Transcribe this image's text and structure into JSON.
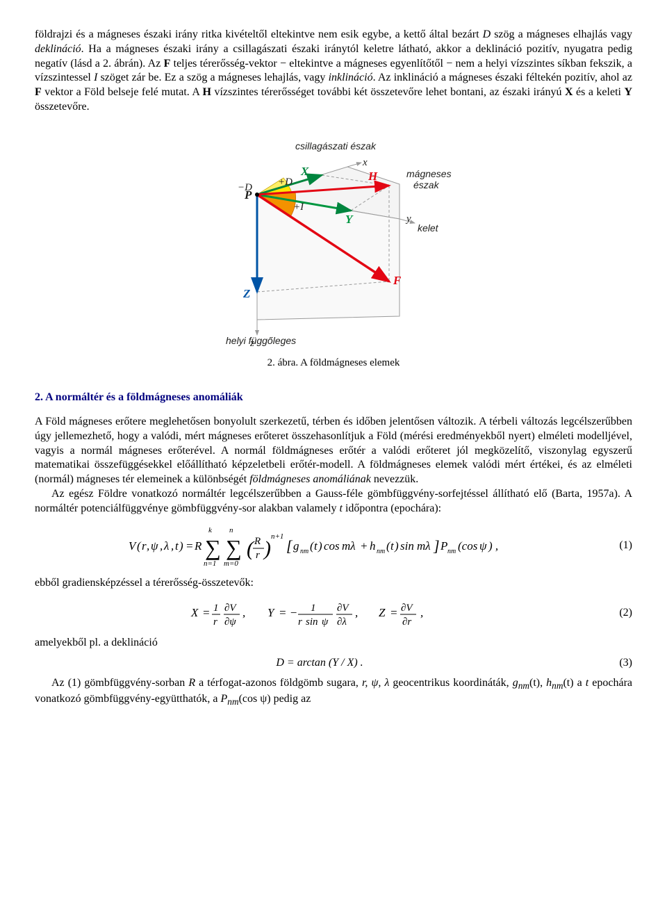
{
  "intro": {
    "p1_a": "földrajzi és a mágneses északi irány ritka kivételtől eltekintve nem esik egybe, a kettő által bezárt ",
    "p1_D": "D",
    "p1_b": " szög a mágneses elhajlás vagy ",
    "p1_decl": "deklináció",
    "p1_c": ". Ha a mágneses északi irány a csillagászati északi iránytól keletre látható, akkor a deklináció pozitív, nyugatra pedig negatív (lásd a 2. ábrán). Az ",
    "p1_F": "F",
    "p1_d": " teljes térerősség-vektor − eltekintve a mágneses egyenlítőtől − nem a helyi vízszintes síkban fekszik, a vízszintessel ",
    "p1_I": "I",
    "p1_e": " szöget zár be. Ez a szög a mágneses lehajlás, vagy ",
    "p1_incl": "inklináció",
    "p1_f": ". Az inklináció a mágneses északi féltekén pozitív, ahol az ",
    "p1_F2": "F",
    "p1_g": " vektor a Föld belseje felé mutat. A ",
    "p1_H": "H",
    "p1_h": " vízszintes térerősséget további két összetevőre lehet bontani, az északi irányú ",
    "p1_X": "X",
    "p1_i": " és a keleti ",
    "p1_Y": "Y",
    "p1_j": " összetevőre."
  },
  "figure": {
    "caption": "2. ábra. A földmágneses elemek",
    "labels": {
      "csillag": "csillagászati észak",
      "magneses_eszak1": "mágneses",
      "magneses_eszak2": "észak",
      "kelet": "kelet",
      "helyi": "helyi függőleges",
      "x": "x",
      "y": "y",
      "z": "z",
      "P": "P",
      "X": "X",
      "Y": "Y",
      "Z": "Z",
      "H": "H",
      "F": "F",
      "negD": "−D",
      "posD": "+D",
      "posI": "+I"
    },
    "colors": {
      "cube_edge": "#9a9a9a",
      "cube_fill": "#efefef",
      "X": "#00853e",
      "Y": "#009640",
      "Z": "#0054a6",
      "H": "#e30613",
      "F": "#e30613",
      "angleD_fill": "#ffe600",
      "angleI_fill": "#f39200",
      "text": "#1d1d1b"
    }
  },
  "section2": {
    "title": "2. A normáltér és a földmágneses anomáliák",
    "p1_a": "A Föld mágneses erőtere meglehetősen bonyolult szerkezetű, térben és időben jelentősen változik. A térbeli változás legcélszerűbben úgy jellemezhető, hogy a valódi, mért mágneses erőteret összehasonlítjuk a Föld (mérési eredményekből nyert) elméleti modelljével, vagyis a normál mágneses erőterével. A normál földmágneses erőtér a valódi erőteret jól megközelítő, viszonylag egyszerű matematikai összefüggésekkel előállítható képzeletbeli erőtér-modell. A földmágneses elemek valódi mért értékei, és az elméleti (normál) mágneses tér elemeinek a különbségét ",
    "p1_anom": "földmágneses anomáliának",
    "p1_b": " nevezzük.",
    "p2_a": "Az egész Földre vonatkozó normáltér legcélszerűbben a Gauss-féle gömbfüggvény-sorfejtéssel állítható elő (Barta, 1957a). A normáltér potenciálfüggvénye gömbfüggvény-sor alakban valamely ",
    "p2_t": "t",
    "p2_b": " időpontra (epochára):",
    "p3": "ebből gradiensképzéssel a térerősség-összetevők:",
    "p4": "amelyekből pl. a deklináció",
    "p5_a": "Az (1) gömbfüggvény-sorban ",
    "p5_R": "R",
    "p5_b": " a térfogat-azonos földgömb sugara, ",
    "p5_coords": "r, ψ, λ",
    "p5_c": " geocentrikus koordináták, ",
    "p5_gnm": "g",
    "p5_nm1": "nm",
    "p5_t1": "(t)",
    "p5_d": ", ",
    "p5_hnm": "h",
    "p5_nm2": "nm",
    "p5_t2": "(t)",
    "p5_e": " a ",
    "p5_t3": "t",
    "p5_f": " epochára vonatkozó gömbfüggvény-együtthatók, a ",
    "p5_Pnm": "P",
    "p5_nm3": "nm",
    "p5_g": "(cos ψ) pedig az"
  },
  "equations": {
    "eq1_num": "(1)",
    "eq2_num": "(2)",
    "eq3_num": "(3)"
  }
}
